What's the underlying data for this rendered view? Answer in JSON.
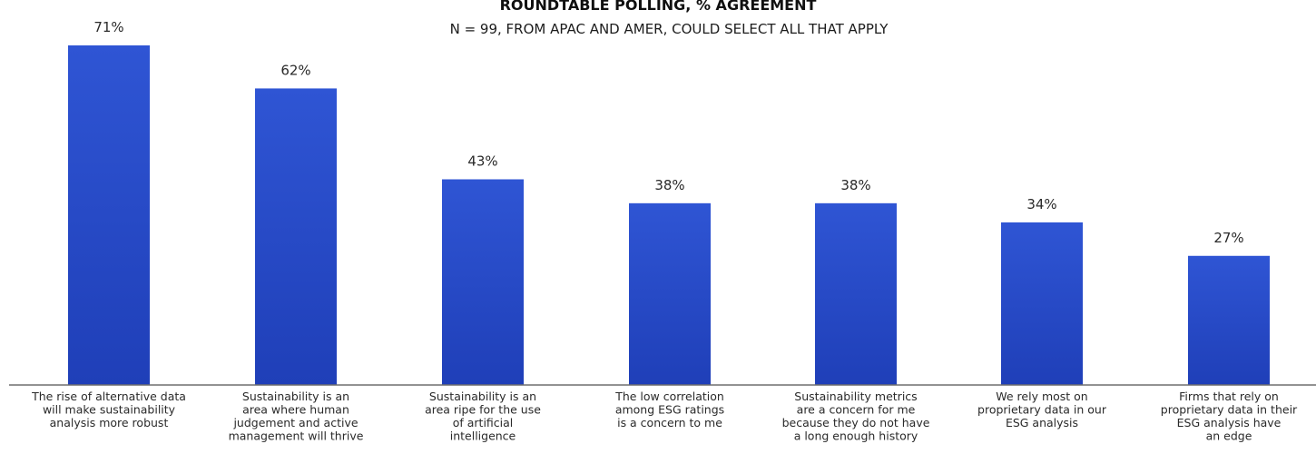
{
  "chart_data": {
    "type": "bar",
    "title": "ROUNDTABLE POLLING, % AGREEMENT",
    "subtitle": "N = 99, FROM APAC AND AMER, COULD SELECT ALL THAT APPLY",
    "categories": [
      [
        "The rise of alternative data",
        "will make sustainability",
        "analysis more robust"
      ],
      [
        "Sustainability is an",
        "area where human",
        "judgement and active",
        "management will thrive"
      ],
      [
        "Sustainability is an",
        "area ripe for the use",
        "of artificial",
        "intelligence"
      ],
      [
        "The low correlation",
        "among ESG ratings",
        "is a concern to me"
      ],
      [
        "Sustainability metrics",
        "are a concern for me",
        "because they do not have",
        "a long enough history"
      ],
      [
        "We rely most on",
        "proprietary data in our",
        "ESG analysis"
      ],
      [
        "Firms that rely on",
        "proprietary data in their",
        "ESG analysis have",
        "an edge"
      ]
    ],
    "values": [
      71,
      62,
      43,
      38,
      38,
      34,
      27
    ],
    "value_labels": [
      "71%",
      "62%",
      "43%",
      "38%",
      "38%",
      "34%",
      "27%"
    ],
    "ylim": [
      0,
      71
    ],
    "colors": {
      "bar_top": "#2f55d4",
      "bar_bottom": "#1f3fb8",
      "axis": "#6f6f6f"
    },
    "grid": false
  }
}
